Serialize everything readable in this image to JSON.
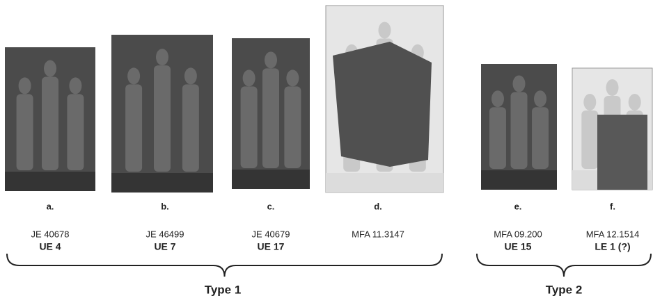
{
  "items": [
    {
      "letter": "a.",
      "id": "JE 40678",
      "ue": "UE 4"
    },
    {
      "letter": "b.",
      "id": "JE 46499",
      "ue": "UE 7"
    },
    {
      "letter": "c.",
      "id": "JE 40679",
      "ue": "UE 17"
    },
    {
      "letter": "d.",
      "id": "MFA 11.3147"
    },
    {
      "letter": "e.",
      "id": "MFA 09.200",
      "ue": "UE 15"
    },
    {
      "letter": "f.",
      "id": "MFA 12.1514",
      "ue": "LE 1 (?)"
    }
  ],
  "groups": [
    {
      "label": "Type 1"
    },
    {
      "label": "Type 2"
    }
  ]
}
